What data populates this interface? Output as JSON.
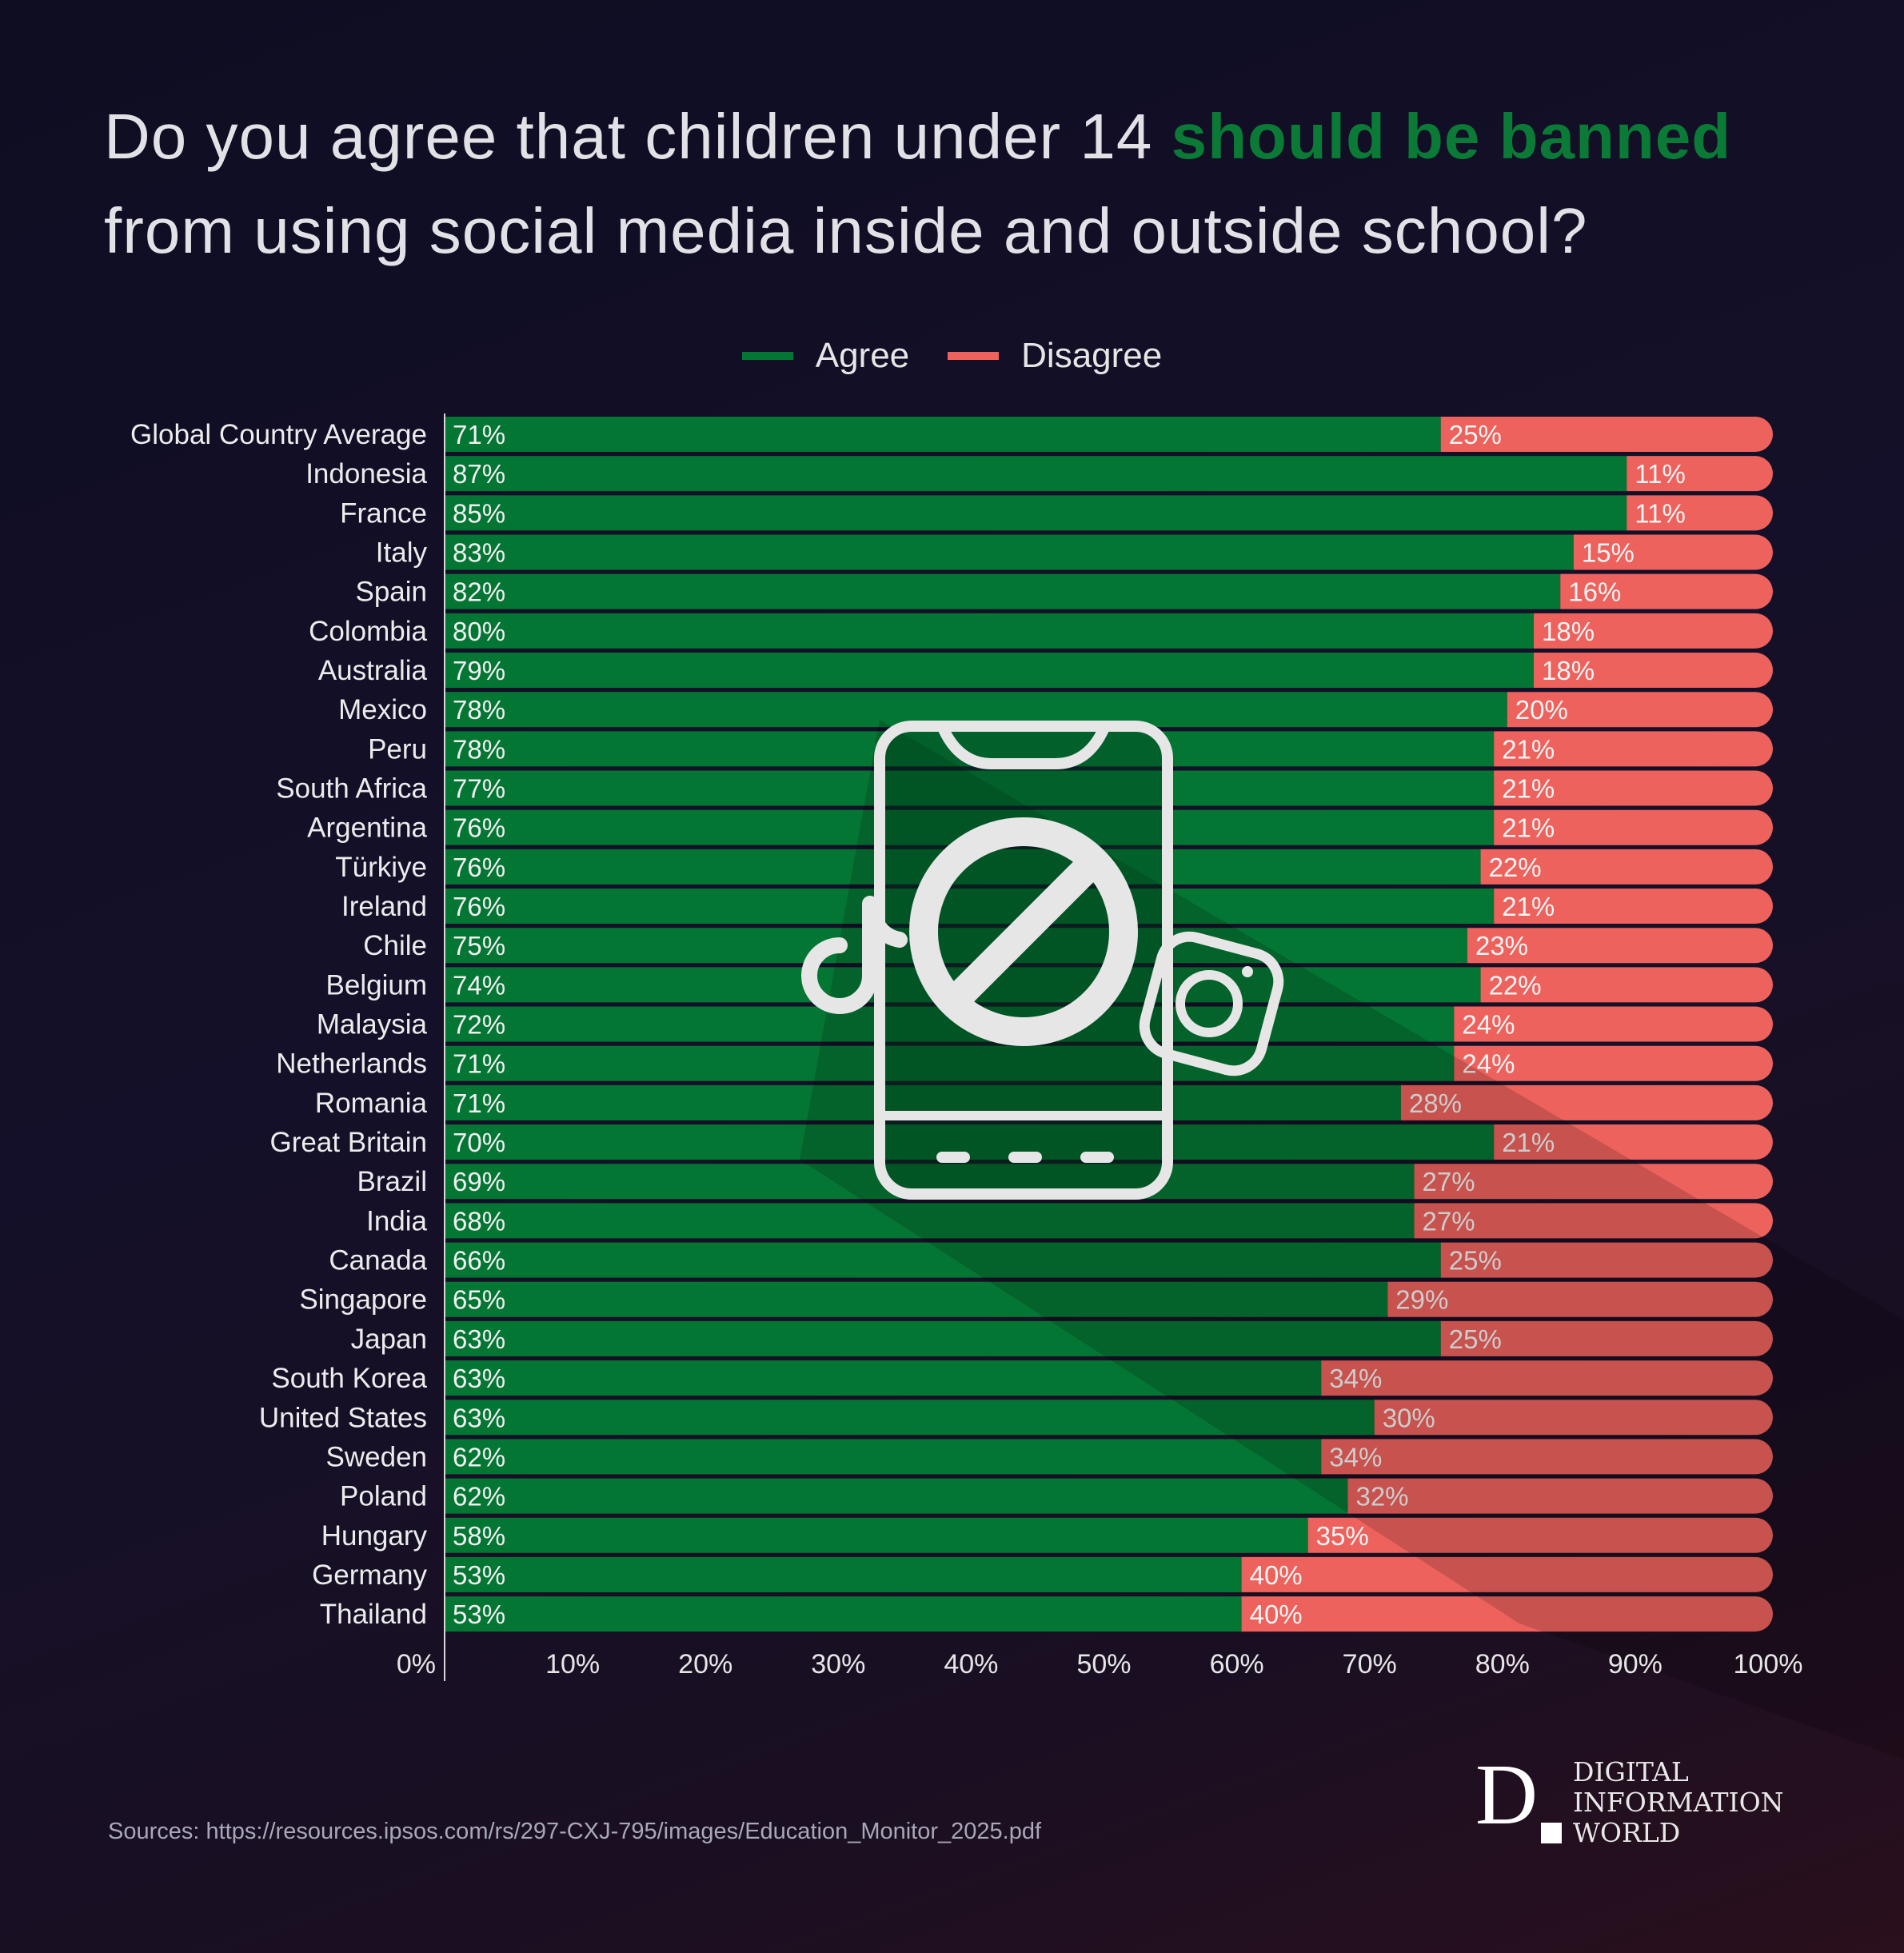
{
  "title": {
    "part1": "Do you agree that children under 14 ",
    "highlight": "should be banned",
    "part2": "from using social media inside and outside school?"
  },
  "colors": {
    "agree": "#047634",
    "disagree": "#ee625d",
    "highlight": "#0a7a36"
  },
  "icon": "phone-with-prohibited-sign-tiktok-instagram-icon",
  "chart_data": {
    "type": "bar",
    "orientation": "horizontal-stacked",
    "categories": [
      "Global Country Average",
      "Indonesia",
      "France",
      "Italy",
      "Spain",
      "Colombia",
      "Australia",
      "Mexico",
      "Peru",
      "South Africa",
      "Argentina",
      "Türkiye",
      "Ireland",
      "Chile",
      "Belgium",
      "Malaysia",
      "Netherlands",
      "Romania",
      "Great Britain",
      "Brazil",
      "India",
      "Canada",
      "Singapore",
      "Japan",
      "South Korea",
      "United States",
      "Sweden",
      "Poland",
      "Hungary",
      "Germany",
      "Thailand"
    ],
    "series": [
      {
        "name": "Agree",
        "values": [
          71,
          87,
          85,
          83,
          82,
          80,
          79,
          78,
          78,
          77,
          76,
          76,
          76,
          75,
          74,
          72,
          71,
          71,
          70,
          69,
          68,
          66,
          65,
          63,
          63,
          63,
          62,
          62,
          58,
          53,
          53
        ]
      },
      {
        "name": "Disagree",
        "values": [
          25,
          11,
          11,
          15,
          16,
          18,
          18,
          20,
          21,
          21,
          21,
          22,
          21,
          23,
          22,
          24,
          24,
          28,
          21,
          27,
          27,
          25,
          29,
          25,
          34,
          30,
          34,
          32,
          35,
          40,
          40
        ]
      }
    ],
    "xlim": [
      0,
      100
    ],
    "xticks": [
      "0%",
      "10%",
      "20%",
      "30%",
      "40%",
      "50%",
      "60%",
      "70%",
      "80%",
      "90%",
      "100%"
    ],
    "legend": "top-center",
    "grid": false
  },
  "source": "Sources: https://resources.ipsos.com/rs/297-CXJ-795/images/Education_Monitor_2025.pdf",
  "logo": {
    "letter": "D",
    "lines": [
      "DIGITAL",
      "INFORMATION",
      "WORLD"
    ]
  }
}
